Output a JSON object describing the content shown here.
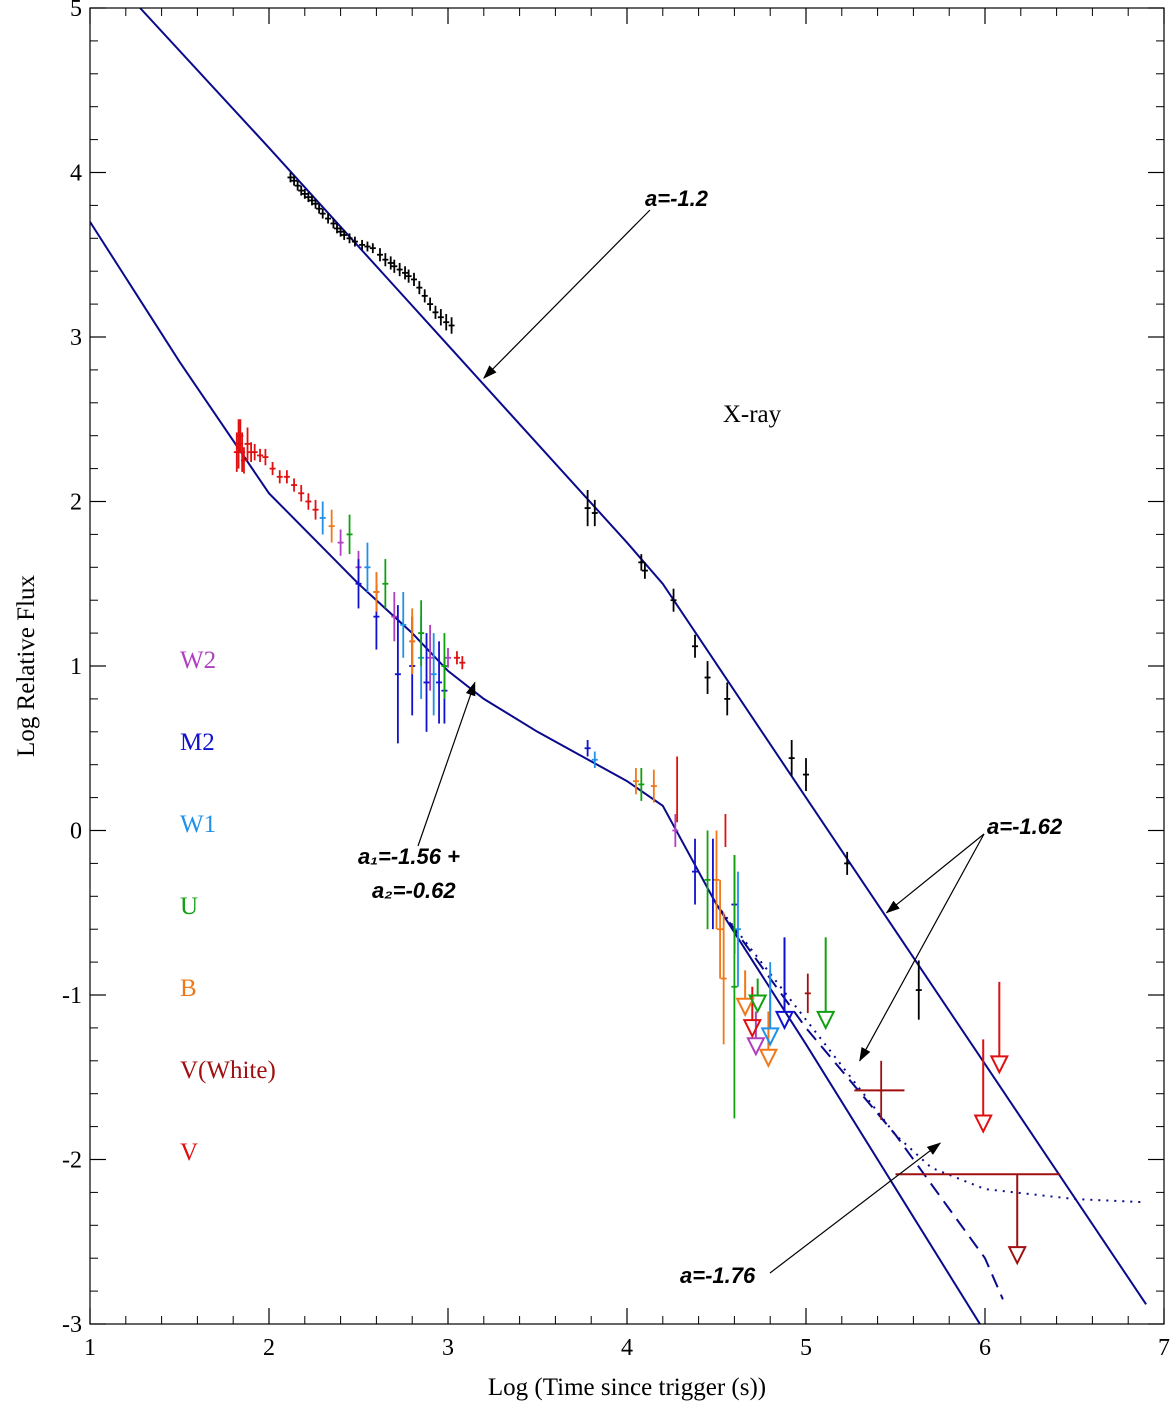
{
  "chart_data": {
    "type": "line",
    "xlabel": "Log (Time since trigger (s))",
    "ylabel": "Log Relative Flux",
    "xlim": [
      1,
      7
    ],
    "ylim": [
      -3,
      5
    ],
    "x_ticks": [
      "1",
      "2",
      "3",
      "4",
      "5",
      "6",
      "7"
    ],
    "y_ticks": [
      "-3",
      "-2",
      "-1",
      "0",
      "1",
      "2",
      "3",
      "4",
      "5"
    ],
    "band_label": "X-ray",
    "legend_placement": "left",
    "legend": [
      {
        "name": "W2",
        "color": "#b040c0"
      },
      {
        "name": "M2",
        "color": "#1010d0"
      },
      {
        "name": "W1",
        "color": "#2090e8"
      },
      {
        "name": "U",
        "color": "#10a010"
      },
      {
        "name": "B",
        "color": "#f07818"
      },
      {
        "name": "V(White)",
        "color": "#a01010"
      },
      {
        "name": "V",
        "color": "#e01010"
      }
    ],
    "annotations": [
      {
        "text": "a=-1.2",
        "at": [
          3.2,
          2.75
        ]
      },
      {
        "text": "a=-1.62",
        "at": [
          5.45,
          -0.5
        ]
      },
      {
        "text": "a=-1.62",
        "at": [
          5.3,
          -1.4
        ]
      },
      {
        "text": "a₁=-1.56 +",
        "at": [
          3.15,
          0.9
        ]
      },
      {
        "text": "a₂=-0.62",
        "at": [
          3.15,
          0.9
        ]
      },
      {
        "text": "a=-1.76",
        "at": [
          5.75,
          -1.9
        ]
      }
    ],
    "model_lines": [
      {
        "name": "X-ray fit",
        "color": "#0a0a8c",
        "style": "solid",
        "points": [
          [
            1.28,
            5.0
          ],
          [
            2.0,
            4.15
          ],
          [
            3.0,
            2.95
          ],
          [
            4.0,
            1.75
          ],
          [
            4.2,
            1.5
          ],
          [
            5.0,
            0.2
          ],
          [
            6.0,
            -1.42
          ],
          [
            6.9,
            -2.88
          ]
        ]
      },
      {
        "name": "Optical fit",
        "color": "#0a0a8c",
        "style": "solid",
        "points": [
          [
            1.0,
            3.7
          ],
          [
            1.5,
            2.85
          ],
          [
            2.0,
            2.05
          ],
          [
            2.5,
            1.5
          ],
          [
            2.8,
            1.2
          ],
          [
            3.0,
            0.97
          ],
          [
            3.2,
            0.8
          ],
          [
            3.5,
            0.6
          ],
          [
            4.0,
            0.3
          ],
          [
            4.2,
            0.15
          ],
          [
            4.5,
            -0.45
          ],
          [
            5.0,
            -1.3
          ],
          [
            6.0,
            -3.05
          ]
        ]
      },
      {
        "name": "Optical fit (dashed)",
        "color": "#0a0a8c",
        "style": "dashed",
        "points": [
          [
            4.5,
            -0.45
          ],
          [
            5.0,
            -1.2
          ],
          [
            5.5,
            -1.85
          ],
          [
            6.0,
            -2.6
          ],
          [
            6.1,
            -2.85
          ]
        ]
      },
      {
        "name": "Optical fit + host (dotted)",
        "color": "#0a0a8c",
        "style": "dotted",
        "points": [
          [
            4.5,
            -0.45
          ],
          [
            5.0,
            -1.15
          ],
          [
            5.5,
            -1.85
          ],
          [
            5.7,
            -2.05
          ],
          [
            6.0,
            -2.18
          ],
          [
            6.5,
            -2.24
          ],
          [
            6.9,
            -2.26
          ]
        ]
      }
    ],
    "xray_points": [
      [
        2.12,
        3.97
      ],
      [
        2.14,
        3.95
      ],
      [
        2.16,
        3.92
      ],
      [
        2.18,
        3.89
      ],
      [
        2.2,
        3.87
      ],
      [
        2.22,
        3.85
      ],
      [
        2.24,
        3.83
      ],
      [
        2.26,
        3.81
      ],
      [
        2.28,
        3.78
      ],
      [
        2.3,
        3.75
      ],
      [
        2.33,
        3.72
      ],
      [
        2.36,
        3.69
      ],
      [
        2.38,
        3.66
      ],
      [
        2.4,
        3.64
      ],
      [
        2.42,
        3.62
      ],
      [
        2.45,
        3.6
      ],
      [
        2.48,
        3.58
      ],
      [
        2.52,
        3.56
      ],
      [
        2.55,
        3.55
      ],
      [
        2.58,
        3.54
      ],
      [
        2.62,
        3.5
      ],
      [
        2.65,
        3.47
      ],
      [
        2.68,
        3.45
      ],
      [
        2.7,
        3.43
      ],
      [
        2.73,
        3.41
      ],
      [
        2.76,
        3.39
      ],
      [
        2.78,
        3.37
      ],
      [
        2.81,
        3.35
      ],
      [
        2.84,
        3.3
      ],
      [
        2.87,
        3.25
      ],
      [
        2.9,
        3.2
      ],
      [
        2.93,
        3.15
      ],
      [
        2.96,
        3.12
      ],
      [
        2.99,
        3.09
      ],
      [
        3.02,
        3.07
      ],
      [
        3.78,
        1.96
      ],
      [
        3.82,
        1.93
      ],
      [
        4.08,
        1.63
      ],
      [
        4.1,
        1.58
      ],
      [
        4.26,
        1.4
      ],
      [
        4.38,
        1.12
      ],
      [
        4.45,
        0.93
      ],
      [
        4.56,
        0.8
      ],
      [
        4.92,
        0.44
      ],
      [
        5.0,
        0.34
      ],
      [
        5.23,
        -0.2
      ],
      [
        5.63,
        -0.97
      ]
    ],
    "xray_errors": [
      0.03,
      0.03,
      0.03,
      0.03,
      0.03,
      0.03,
      0.03,
      0.03,
      0.03,
      0.03,
      0.03,
      0.03,
      0.03,
      0.03,
      0.03,
      0.03,
      0.03,
      0.03,
      0.03,
      0.03,
      0.04,
      0.04,
      0.04,
      0.04,
      0.04,
      0.04,
      0.04,
      0.04,
      0.04,
      0.04,
      0.04,
      0.04,
      0.05,
      0.05,
      0.05,
      0.11,
      0.08,
      0.05,
      0.05,
      0.07,
      0.07,
      0.1,
      0.1,
      0.11,
      0.1,
      0.07,
      0.18
    ],
    "optical_series": [
      {
        "name": "V",
        "color": "#e01010",
        "points": [
          [
            1.82,
            2.3
          ],
          [
            1.83,
            2.35
          ],
          [
            1.84,
            2.4
          ],
          [
            1.85,
            2.3
          ],
          [
            1.86,
            2.25
          ],
          [
            1.88,
            2.35
          ],
          [
            1.9,
            2.3
          ],
          [
            1.92,
            2.3
          ],
          [
            1.95,
            2.28
          ],
          [
            1.98,
            2.27
          ],
          [
            2.02,
            2.2
          ],
          [
            2.06,
            2.15
          ],
          [
            2.1,
            2.15
          ],
          [
            2.14,
            2.1
          ],
          [
            2.18,
            2.05
          ],
          [
            2.22,
            2.0
          ],
          [
            2.26,
            1.95
          ],
          [
            3.05,
            1.05
          ],
          [
            3.08,
            1.02
          ]
        ],
        "errors": [
          0.12,
          0.15,
          0.1,
          0.12,
          0.08,
          0.1,
          0.06,
          0.05,
          0.04,
          0.05,
          0.04,
          0.04,
          0.04,
          0.04,
          0.05,
          0.05,
          0.06,
          0.04,
          0.04
        ]
      },
      {
        "name": "W2",
        "color": "#b040c0",
        "points": [
          [
            2.4,
            1.75
          ],
          [
            2.5,
            1.6
          ],
          [
            2.6,
            1.45
          ],
          [
            2.7,
            1.3
          ],
          [
            2.8,
            1.15
          ],
          [
            2.9,
            1.05
          ],
          [
            3.0,
            1.05
          ],
          [
            4.27,
            0.0
          ]
        ],
        "errors": [
          0.08,
          0.1,
          0.12,
          0.15,
          0.15,
          0.2,
          0.06,
          0.1
        ]
      },
      {
        "name": "M2",
        "color": "#1010d0",
        "points": [
          [
            2.5,
            1.5
          ],
          [
            2.6,
            1.3
          ],
          [
            2.72,
            0.95
          ],
          [
            2.8,
            1.0
          ],
          [
            2.88,
            0.9
          ],
          [
            2.95,
            0.9
          ],
          [
            2.98,
            0.85
          ],
          [
            3.78,
            0.5
          ],
          [
            4.38,
            -0.25
          ],
          [
            4.6,
            -0.45
          ]
        ],
        "errors": [
          0.15,
          0.2,
          0.42,
          0.3,
          0.3,
          0.25,
          0.2,
          0.05,
          0.2,
          0.3
        ]
      },
      {
        "name": "W1",
        "color": "#2090e8",
        "points": [
          [
            2.3,
            1.9
          ],
          [
            2.55,
            1.6
          ],
          [
            2.75,
            1.25
          ],
          [
            2.85,
            1.05
          ],
          [
            2.92,
            0.95
          ],
          [
            3.82,
            0.43
          ],
          [
            4.62,
            -0.6
          ]
        ],
        "errors": [
          0.1,
          0.15,
          0.2,
          0.25,
          0.25,
          0.05,
          0.35
        ]
      },
      {
        "name": "U",
        "color": "#10a010",
        "points": [
          [
            2.45,
            1.8
          ],
          [
            2.65,
            1.5
          ],
          [
            2.85,
            1.2
          ],
          [
            2.98,
            1.0
          ],
          [
            4.08,
            0.28
          ],
          [
            4.45,
            -0.3
          ],
          [
            4.6,
            -0.95
          ]
        ],
        "errors": [
          0.12,
          0.15,
          0.2,
          0.2,
          0.1,
          0.3,
          0.8
        ]
      },
      {
        "name": "B",
        "color": "#f07818",
        "points": [
          [
            2.35,
            1.85
          ],
          [
            2.6,
            1.45
          ],
          [
            2.8,
            1.15
          ],
          [
            4.05,
            0.3
          ],
          [
            4.15,
            0.27
          ],
          [
            4.5,
            -0.3
          ],
          [
            4.52,
            -0.6
          ],
          [
            4.54,
            -0.9
          ]
        ],
        "errors": [
          0.1,
          0.12,
          0.2,
          0.08,
          0.1,
          0.3,
          0.3,
          0.4
        ]
      },
      {
        "name": "V(White)",
        "color": "#a01010",
        "points": [
          [
            5.01,
            -0.99
          ],
          [
            5.42,
            -1.58
          ]
        ],
        "errors": [
          0.12,
          0.18
        ]
      }
    ],
    "extra_error_bars": [
      {
        "color": "#e01010",
        "x": 4.28,
        "y0": 0.05,
        "y1": 0.45
      },
      {
        "color": "#e01010",
        "x": 4.55,
        "y0": -0.1,
        "y1": 0.1
      },
      {
        "color": "#1010d0",
        "x": 4.48,
        "y0": -0.6,
        "y1": -0.05
      },
      {
        "color": "#1010d0",
        "x": 4.88,
        "y0": -1.1,
        "y1": -0.65
      },
      {
        "color": "#2090e8",
        "x": 4.8,
        "y0": -1.1,
        "y1": -0.8
      }
    ],
    "horizontal_bars": [
      {
        "color": "#a01010",
        "x0": 5.27,
        "x1": 5.55,
        "y": -1.58
      },
      {
        "color": "#a01010",
        "x0": 5.5,
        "x1": 6.42,
        "y": -2.09
      }
    ],
    "upper_limits": [
      {
        "series": "W2",
        "color": "#b040c0",
        "x": 4.72,
        "y_top": -1.1,
        "y_tip": -1.36
      },
      {
        "series": "V",
        "color": "#e01010",
        "x": 4.7,
        "y_top": -0.95,
        "y_tip": -1.25
      },
      {
        "series": "B",
        "color": "#f07818",
        "x": 4.66,
        "y_top": -0.85,
        "y_tip": -1.12
      },
      {
        "series": "B",
        "color": "#f07818",
        "x": 4.79,
        "y_top": -1.1,
        "y_tip": -1.43
      },
      {
        "series": "U",
        "color": "#10a010",
        "x": 4.73,
        "y_top": -0.9,
        "y_tip": -1.1
      },
      {
        "series": "W1",
        "color": "#2090e8",
        "x": 4.8,
        "y_top": -0.85,
        "y_tip": -1.3
      },
      {
        "series": "M2",
        "color": "#1010d0",
        "x": 4.88,
        "y_top": -0.65,
        "y_tip": -1.2
      },
      {
        "series": "U",
        "color": "#10a010",
        "x": 5.11,
        "y_top": -0.65,
        "y_tip": -1.2
      },
      {
        "series": "V",
        "color": "#e01010",
        "x": 5.99,
        "y_top": -1.27,
        "y_tip": -1.83
      },
      {
        "series": "V",
        "color": "#e01010",
        "x": 6.08,
        "y_top": -0.92,
        "y_tip": -1.47
      },
      {
        "series": "V(White)",
        "color": "#a01010",
        "x": 6.18,
        "y_top": -2.09,
        "y_tip": -2.63
      }
    ]
  }
}
